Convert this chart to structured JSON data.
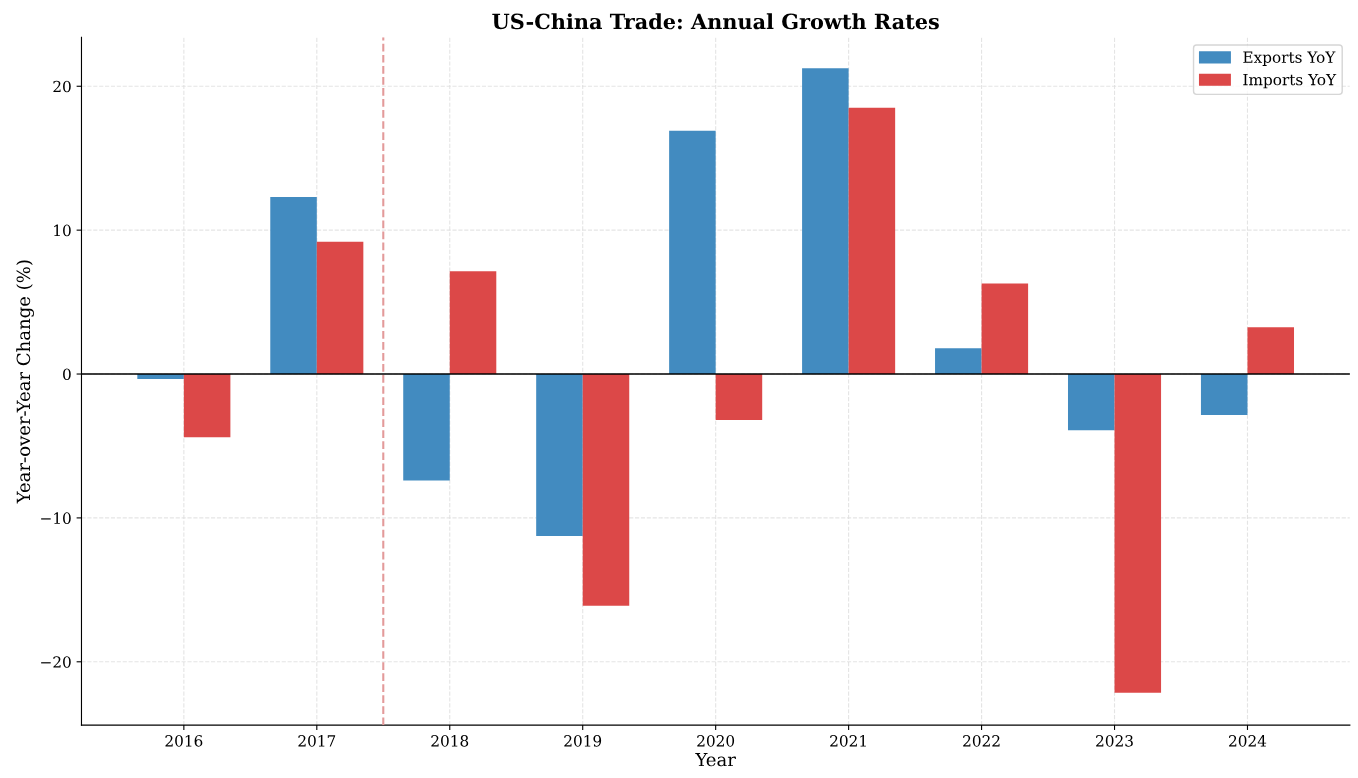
{
  "chart_data": {
    "type": "bar",
    "title": "US-China Trade: Annual Growth Rates",
    "xlabel": "Year",
    "ylabel": "Year-over-Year Change (%)",
    "x": [
      2016,
      2017,
      2018,
      2019,
      2020,
      2021,
      2022,
      2023,
      2024
    ],
    "series": [
      {
        "name": "Exports YoY",
        "color": "#428bc0",
        "values": [
          -0.35,
          12.3,
          -7.4,
          -11.25,
          16.9,
          21.25,
          1.8,
          -3.9,
          -2.85
        ]
      },
      {
        "name": "Imports YoY",
        "color": "#dc4848",
        "values": [
          -4.4,
          9.2,
          7.15,
          -16.1,
          -3.2,
          18.5,
          6.3,
          -22.15,
          3.25
        ]
      }
    ],
    "xlim": [
      2015.23,
      2024.77
    ],
    "xticks": [
      2016,
      2017,
      2018,
      2019,
      2020,
      2021,
      2022,
      2023,
      2024
    ],
    "ylim": [
      -24.4,
      23.4
    ],
    "yticks": [
      {
        "value": -20,
        "label": "−20"
      },
      {
        "value": -10,
        "label": "−10"
      },
      0,
      10,
      20
    ],
    "ref_lines": [
      {
        "axis": "x",
        "value": 2017.5,
        "color": "#e39a9a",
        "line_style": "dashed"
      },
      {
        "axis": "y",
        "value": 0,
        "color": "#000000",
        "line_style": "solid"
      }
    ],
    "grid": true,
    "legend": "top right"
  }
}
